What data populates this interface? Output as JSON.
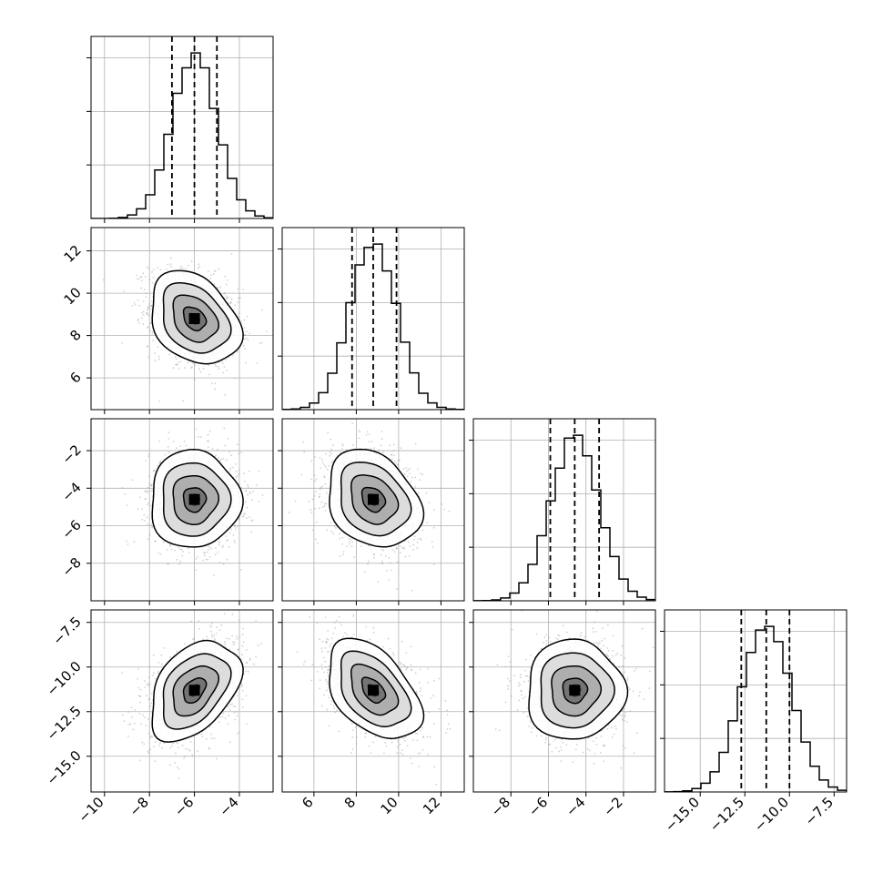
{
  "chart_data": {
    "type": "corner",
    "style": {
      "axis_color": "#000000",
      "grid_color": "#b0b0b0",
      "scatter_color": "#9a9a9a",
      "contour_color": "#000000",
      "hist_color": "#000000"
    },
    "grid": true,
    "parameters": [
      {
        "index": 0,
        "range": [
          -10.6,
          -2.5
        ],
        "ticks": [
          -10,
          -8,
          -6,
          -4
        ],
        "tick_labels": [
          "−10",
          "−8",
          "−6",
          "−4"
        ],
        "mean": -6.0,
        "std": 1.0,
        "quantiles": [
          -7.0,
          -6.0,
          -5.0
        ],
        "hist_peak_counts": 1
      },
      {
        "index": 1,
        "range": [
          4.5,
          13.1
        ],
        "ticks": [
          6,
          8,
          10,
          12
        ],
        "tick_labels": [
          "6",
          "8",
          "10",
          "12"
        ],
        "mean": 8.8,
        "std": 1.1,
        "quantiles": [
          7.8,
          8.8,
          9.9
        ]
      },
      {
        "index": 2,
        "range": [
          -10.0,
          -0.3
        ],
        "ticks": [
          -8,
          -6,
          -4,
          -2
        ],
        "tick_labels": [
          "−8",
          "−6",
          "−4",
          "−2"
        ],
        "mean": -4.6,
        "std": 1.3,
        "quantiles": [
          -5.9,
          -4.6,
          -3.3
        ]
      },
      {
        "index": 3,
        "range": [
          -17.0,
          -6.8
        ],
        "ticks": [
          -15.0,
          -12.5,
          -10.0,
          -7.5
        ],
        "tick_labels": [
          "−15.0",
          "−12.5",
          "−10.0",
          "−7.5"
        ],
        "mean": -11.3,
        "std": 1.4,
        "quantiles": [
          -12.7,
          -11.3,
          -10.0
        ]
      }
    ],
    "correlations": [
      {
        "pair": [
          0,
          1
        ],
        "rho": -0.3
      },
      {
        "pair": [
          0,
          2
        ],
        "rho": 0.0
      },
      {
        "pair": [
          1,
          2
        ],
        "rho": -0.25
      },
      {
        "pair": [
          0,
          3
        ],
        "rho": 0.4
      },
      {
        "pair": [
          1,
          3
        ],
        "rho": -0.45
      },
      {
        "pair": [
          2,
          3
        ],
        "rho": 0.0
      }
    ],
    "contour_levels_sigma": [
      0.5,
      1.0,
      1.5,
      2.0
    ],
    "hist_bins": 20
  }
}
